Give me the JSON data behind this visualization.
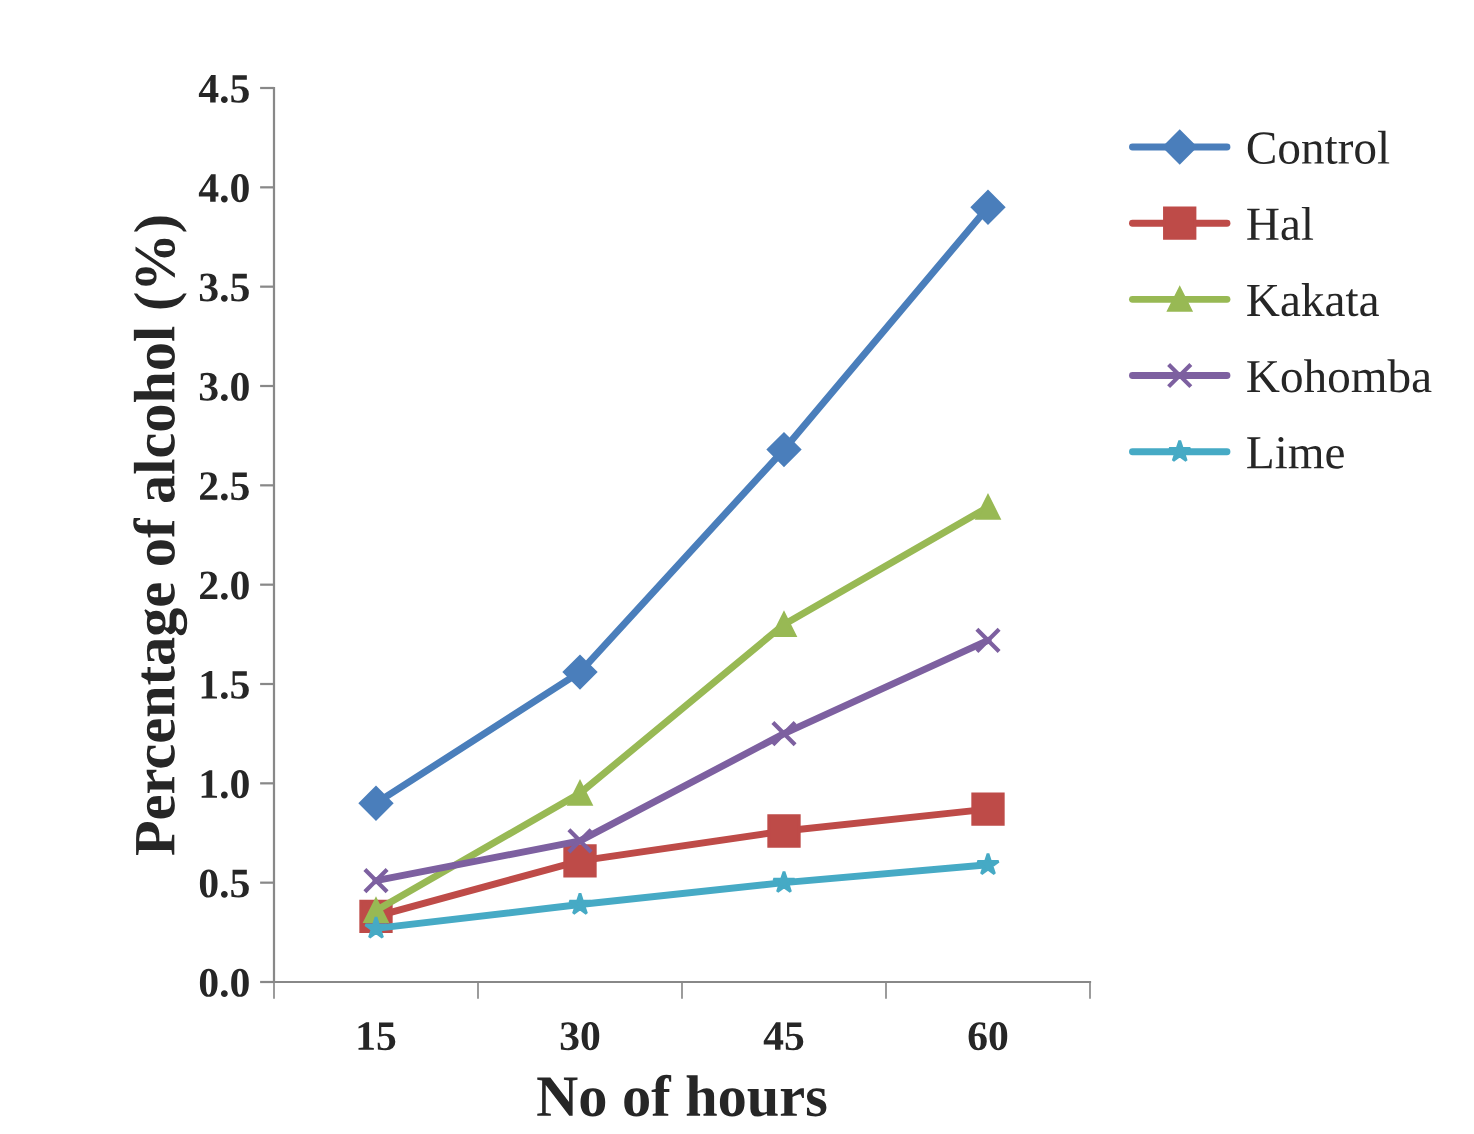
{
  "chart_data": {
    "type": "line",
    "xlabel": "No of hours",
    "ylabel": "Percentage of alcohol (%)",
    "categories": [
      "15",
      "30",
      "45",
      "60"
    ],
    "series": [
      {
        "name": "Control",
        "color": "#4a7ebb",
        "marker": "diamond",
        "values": [
          0.9,
          1.56,
          2.68,
          3.9
        ]
      },
      {
        "name": "Hal",
        "color": "#be4b48",
        "marker": "square",
        "values": [
          0.33,
          0.61,
          0.76,
          0.87
        ]
      },
      {
        "name": "Kakata",
        "color": "#98b954",
        "marker": "triangle",
        "values": [
          0.36,
          0.95,
          1.8,
          2.39
        ]
      },
      {
        "name": "Kohomba",
        "color": "#7d60a0",
        "marker": "cross",
        "values": [
          0.51,
          0.71,
          1.25,
          1.72
        ]
      },
      {
        "name": "Lime",
        "color": "#46aac5",
        "marker": "star",
        "values": [
          0.27,
          0.39,
          0.5,
          0.59
        ]
      }
    ],
    "ylim": [
      0,
      4.5
    ],
    "yticks": [
      {
        "value": 0,
        "label": "0.0"
      },
      {
        "value": 0.5,
        "label": "0.5"
      },
      {
        "value": 1,
        "label": "1.0"
      },
      {
        "value": 1.5,
        "label": "1.5"
      },
      {
        "value": 2,
        "label": "2.0"
      },
      {
        "value": 2.5,
        "label": "2.5"
      },
      {
        "value": 3,
        "label": "3.0"
      },
      {
        "value": 3.5,
        "label": "3.5"
      },
      {
        "value": 4,
        "label": "4.0"
      },
      {
        "value": 4.5,
        "label": "4.5"
      }
    ],
    "grid": false,
    "legend": "right",
    "line_style": "solid"
  }
}
